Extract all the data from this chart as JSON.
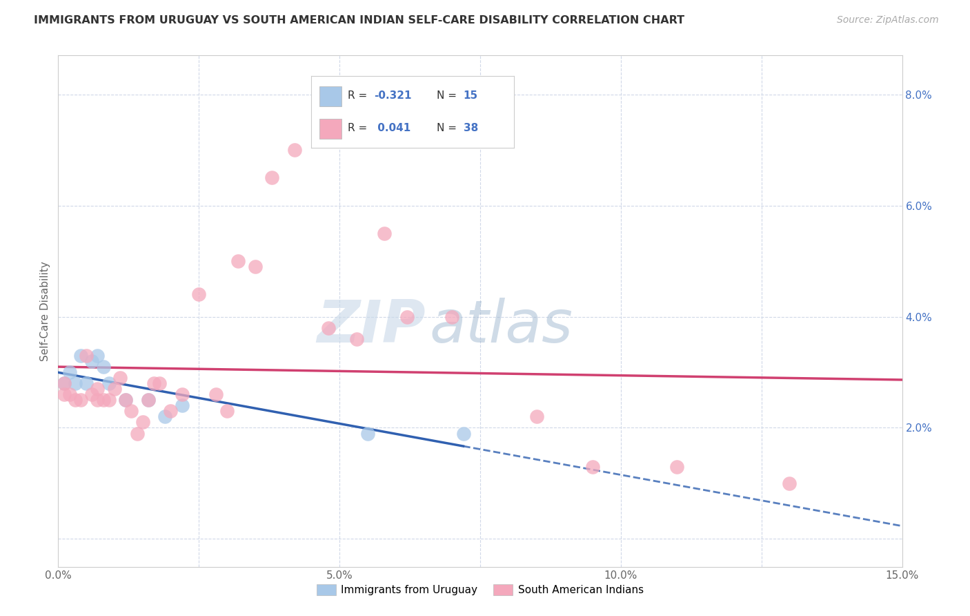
{
  "title": "IMMIGRANTS FROM URUGUAY VS SOUTH AMERICAN INDIAN SELF-CARE DISABILITY CORRELATION CHART",
  "source": "Source: ZipAtlas.com",
  "ylabel": "Self-Care Disability",
  "xlim": [
    0.0,
    0.15
  ],
  "ylim": [
    -0.005,
    0.087
  ],
  "blue_color": "#a8c8e8",
  "pink_color": "#f4a8bc",
  "blue_line_color": "#3060b0",
  "pink_line_color": "#d04070",
  "watermark_zip": "ZIP",
  "watermark_atlas": "atlas",
  "legend_items": [
    {
      "label_r": "R = -0.321",
      "label_n": "N = 15",
      "patch_color": "#a8c8e8"
    },
    {
      "label_r": "R =  0.041",
      "label_n": "N = 38",
      "patch_color": "#f4a8bc"
    }
  ],
  "bottom_legend": [
    "Immigrants from Uruguay",
    "South American Indians"
  ],
  "blue_x": [
    0.001,
    0.002,
    0.003,
    0.004,
    0.005,
    0.006,
    0.007,
    0.008,
    0.009,
    0.012,
    0.016,
    0.019,
    0.022,
    0.055,
    0.072
  ],
  "blue_y": [
    0.028,
    0.03,
    0.028,
    0.033,
    0.028,
    0.032,
    0.033,
    0.031,
    0.028,
    0.025,
    0.025,
    0.022,
    0.024,
    0.019,
    0.019
  ],
  "pink_x": [
    0.001,
    0.001,
    0.002,
    0.003,
    0.004,
    0.005,
    0.006,
    0.007,
    0.007,
    0.008,
    0.009,
    0.01,
    0.011,
    0.012,
    0.013,
    0.014,
    0.015,
    0.016,
    0.017,
    0.018,
    0.02,
    0.022,
    0.025,
    0.028,
    0.03,
    0.032,
    0.035,
    0.038,
    0.042,
    0.048,
    0.053,
    0.058,
    0.062,
    0.07,
    0.085,
    0.095,
    0.11,
    0.13
  ],
  "pink_y": [
    0.028,
    0.026,
    0.026,
    0.025,
    0.025,
    0.033,
    0.026,
    0.027,
    0.025,
    0.025,
    0.025,
    0.027,
    0.029,
    0.025,
    0.023,
    0.019,
    0.021,
    0.025,
    0.028,
    0.028,
    0.023,
    0.026,
    0.044,
    0.026,
    0.023,
    0.05,
    0.049,
    0.065,
    0.07,
    0.038,
    0.036,
    0.055,
    0.04,
    0.04,
    0.022,
    0.013,
    0.013,
    0.01
  ]
}
